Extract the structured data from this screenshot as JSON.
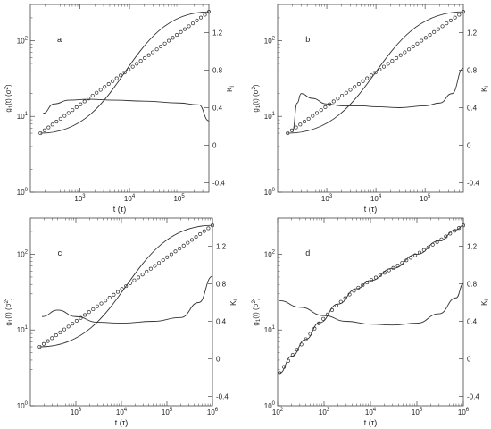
{
  "figure": {
    "axis_common": {
      "xlabel": "t (τ)",
      "ylabel_left_main": "g",
      "ylabel_left_sub": "1",
      "ylabel_left_tail": "(t) (σ",
      "ylabel_left_sup": "2",
      "ylabel_left_close": ")",
      "ylabel_right_main": "K",
      "ylabel_right_sub": "l",
      "yleft_ticks": [
        {
          "v": 1,
          "label": "10",
          "exp": "0"
        },
        {
          "v": 10,
          "label": "10",
          "exp": "1"
        },
        {
          "v": 100,
          "label": "10",
          "exp": "2"
        }
      ],
      "yright_ticks": [
        -0.4,
        0,
        0.4,
        0.8,
        1.2
      ],
      "yright_ticklabels": [
        "-0.4",
        "0",
        "0.4",
        "0.8",
        "1.2"
      ]
    },
    "colors": {
      "line": "#333333",
      "marker": "#333333",
      "axis": "#444444"
    }
  },
  "chart_data": [
    {
      "type": "line",
      "panel_label": "a",
      "x_scale": "log",
      "y_left_scale": "log",
      "xlim": [
        100,
        400000
      ],
      "ylim_left": [
        1,
        300
      ],
      "ylim_right": [
        -0.5,
        1.5
      ],
      "x_ticks": [
        {
          "v": 1000,
          "label": "10",
          "exp": "3"
        },
        {
          "v": 10000,
          "label": "10",
          "exp": "4"
        },
        {
          "v": 100000,
          "label": "10",
          "exp": "5"
        }
      ],
      "series": [
        {
          "axis": "left",
          "style": "markers+line",
          "x": [
            160,
            400000
          ],
          "y": [
            6,
            240
          ],
          "slope_from": [
            180,
            6.2
          ]
        },
        {
          "axis": "right",
          "style": "line",
          "points": [
            [
              180,
              0.34
            ],
            [
              300,
              0.44
            ],
            [
              600,
              0.48
            ],
            [
              1500,
              0.49
            ],
            [
              5000,
              0.48
            ],
            [
              20000,
              0.47
            ],
            [
              100000,
              0.45
            ],
            [
              250000,
              0.43
            ],
            [
              400000,
              0.26
            ]
          ]
        }
      ]
    },
    {
      "type": "line",
      "panel_label": "b",
      "x_scale": "log",
      "y_left_scale": "log",
      "xlim": [
        100,
        600000
      ],
      "ylim_left": [
        1,
        300
      ],
      "ylim_right": [
        -0.5,
        1.5
      ],
      "x_ticks": [
        {
          "v": 1000,
          "label": "10",
          "exp": "3"
        },
        {
          "v": 10000,
          "label": "10",
          "exp": "4"
        },
        {
          "v": 100000,
          "label": "10",
          "exp": "5"
        }
      ],
      "series": [
        {
          "axis": "left",
          "style": "markers+line",
          "x": [
            160,
            600000
          ],
          "y": [
            6,
            240
          ],
          "slope_from": [
            180,
            6.2
          ]
        },
        {
          "axis": "right",
          "style": "line",
          "points": [
            [
              200,
              0.14
            ],
            [
              250,
              0.45
            ],
            [
              300,
              0.55
            ],
            [
              500,
              0.5
            ],
            [
              1000,
              0.44
            ],
            [
              2000,
              0.42
            ],
            [
              5000,
              0.42
            ],
            [
              10000,
              0.41
            ],
            [
              30000,
              0.4
            ],
            [
              100000,
              0.42
            ],
            [
              200000,
              0.45
            ],
            [
              350000,
              0.55
            ],
            [
              600000,
              0.82
            ]
          ]
        }
      ]
    },
    {
      "type": "line",
      "panel_label": "c",
      "x_scale": "log",
      "y_left_scale": "log",
      "xlim": [
        100,
        1000000
      ],
      "ylim_left": [
        1,
        300
      ],
      "ylim_right": [
        -0.5,
        1.5
      ],
      "x_ticks": [
        {
          "v": 1000,
          "label": "10",
          "exp": "3"
        },
        {
          "v": 10000,
          "label": "10",
          "exp": "4"
        },
        {
          "v": 100000,
          "label": "10",
          "exp": "5"
        },
        {
          "v": 1000000,
          "label": "10",
          "exp": "6"
        }
      ],
      "series": [
        {
          "axis": "left",
          "style": "markers+line",
          "x": [
            160,
            1000000
          ],
          "y": [
            6,
            240
          ],
          "slope_from": [
            180,
            6.2
          ]
        },
        {
          "axis": "right",
          "style": "line",
          "points": [
            [
              180,
              0.45
            ],
            [
              400,
              0.52
            ],
            [
              1000,
              0.45
            ],
            [
              3000,
              0.39
            ],
            [
              10000,
              0.38
            ],
            [
              50000,
              0.4
            ],
            [
              200000,
              0.44
            ],
            [
              500000,
              0.6
            ],
            [
              1000000,
              0.88
            ]
          ]
        }
      ]
    },
    {
      "type": "line",
      "panel_label": "d",
      "x_scale": "log",
      "y_left_scale": "log",
      "xlim": [
        100,
        1000000
      ],
      "ylim_left": [
        1,
        300
      ],
      "ylim_right": [
        -0.5,
        1.5
      ],
      "x_ticks": [
        {
          "v": 100,
          "label": "10",
          "exp": "2"
        },
        {
          "v": 1000,
          "label": "10",
          "exp": "3"
        },
        {
          "v": 10000,
          "label": "10",
          "exp": "4"
        },
        {
          "v": 100000,
          "label": "10",
          "exp": "5"
        },
        {
          "v": 1000000,
          "label": "10",
          "exp": "6"
        }
      ],
      "series": [
        {
          "axis": "left",
          "style": "markers+line",
          "points": [
            [
              110,
              2.7
            ],
            [
              200,
              4.5
            ],
            [
              400,
              7.5
            ],
            [
              800,
              12.5
            ],
            [
              2000,
              22
            ],
            [
              5000,
              35
            ],
            [
              10000,
              45
            ],
            [
              30000,
              65
            ],
            [
              100000,
              100
            ],
            [
              300000,
              150
            ],
            [
              700000,
              210
            ],
            [
              1000000,
              240
            ]
          ]
        },
        {
          "axis": "right",
          "style": "line",
          "points": [
            [
              110,
              0.62
            ],
            [
              300,
              0.55
            ],
            [
              1000,
              0.46
            ],
            [
              3000,
              0.4
            ],
            [
              10000,
              0.37
            ],
            [
              30000,
              0.36
            ],
            [
              100000,
              0.38
            ],
            [
              300000,
              0.48
            ],
            [
              700000,
              0.65
            ],
            [
              1000000,
              0.8
            ]
          ]
        }
      ]
    }
  ]
}
